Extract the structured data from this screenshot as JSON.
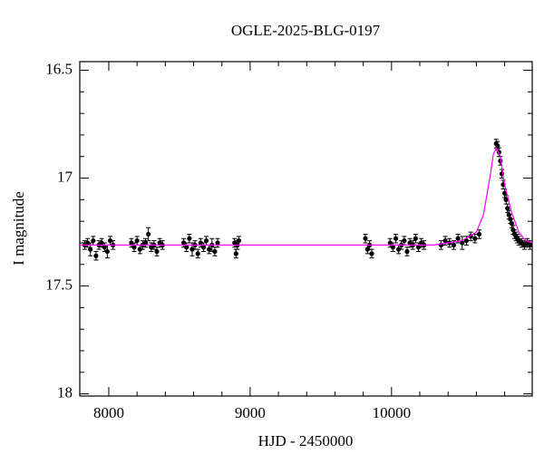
{
  "chart_data": {
    "type": "scatter",
    "title": "OGLE-2025-BLG-0197",
    "x_label": "HJD - 2450000",
    "y_label": "I magnitude",
    "xlim": [
      7795,
      10995
    ],
    "ylim": [
      16.46,
      18.01
    ],
    "y_inverted": true,
    "xticks": [
      8000,
      9000,
      10000
    ],
    "yticks": [
      16.5,
      17,
      17.5,
      18
    ],
    "xminorticks": [
      8200,
      8400,
      8600,
      8800,
      9200,
      9400,
      9600,
      9800,
      10200,
      10400,
      10600,
      10800
    ],
    "yminorticks": [
      16.6,
      16.7,
      16.8,
      16.9,
      17.1,
      17.2,
      17.3,
      17.4,
      17.6,
      17.7,
      17.8,
      17.9
    ],
    "series": [
      {
        "kind": "errorbar",
        "color": "#000000",
        "x": [
          7830,
          7850,
          7870,
          7890,
          7910,
          7930,
          7950,
          7970,
          7990,
          8010,
          8030,
          8160,
          8180,
          8200,
          8220,
          8240,
          8260,
          8280,
          8300,
          8320,
          8340,
          8360,
          8380,
          8530,
          8550,
          8570,
          8590,
          8610,
          8630,
          8650,
          8670,
          8690,
          8710,
          8730,
          8750,
          8770,
          8890,
          8900,
          8910,
          8920,
          9815,
          9830,
          9845,
          9860,
          9990,
          10010,
          10030,
          10050,
          10070,
          10090,
          10110,
          10130,
          10150,
          10170,
          10190,
          10210,
          10230,
          10350,
          10380,
          10410,
          10440,
          10470,
          10500,
          10530,
          10560,
          10590,
          10620,
          10740,
          10750,
          10760,
          10770,
          10780,
          10790,
          10800,
          10810,
          10820,
          10830,
          10840,
          10850,
          10860,
          10870,
          10880,
          10890,
          10900,
          10920,
          10940,
          10960,
          10980
        ],
        "values": [
          17.31,
          17.3,
          17.33,
          17.29,
          17.36,
          17.31,
          17.3,
          17.32,
          17.34,
          17.29,
          17.31,
          17.3,
          17.32,
          17.29,
          17.33,
          17.31,
          17.3,
          17.26,
          17.32,
          17.31,
          17.34,
          17.3,
          17.31,
          17.3,
          17.32,
          17.28,
          17.33,
          17.31,
          17.35,
          17.3,
          17.32,
          17.29,
          17.33,
          17.31,
          17.34,
          17.3,
          17.3,
          17.35,
          17.31,
          17.29,
          17.28,
          17.33,
          17.31,
          17.35,
          17.3,
          17.32,
          17.28,
          17.33,
          17.31,
          17.29,
          17.34,
          17.3,
          17.31,
          17.28,
          17.32,
          17.3,
          17.31,
          17.31,
          17.29,
          17.3,
          17.31,
          17.28,
          17.3,
          17.29,
          17.27,
          17.28,
          17.26,
          16.84,
          16.85,
          16.88,
          16.92,
          16.98,
          17.03,
          17.07,
          17.1,
          17.14,
          17.17,
          17.19,
          17.21,
          17.24,
          17.26,
          17.27,
          17.28,
          17.29,
          17.3,
          17.31,
          17.3,
          17.31
        ],
        "errors": [
          0.02,
          0.02,
          0.03,
          0.02,
          0.02,
          0.02,
          0.02,
          0.02,
          0.03,
          0.02,
          0.02,
          0.02,
          0.02,
          0.02,
          0.02,
          0.02,
          0.02,
          0.03,
          0.02,
          0.02,
          0.02,
          0.02,
          0.02,
          0.02,
          0.02,
          0.02,
          0.03,
          0.02,
          0.02,
          0.02,
          0.02,
          0.02,
          0.02,
          0.03,
          0.02,
          0.02,
          0.02,
          0.02,
          0.02,
          0.02,
          0.02,
          0.02,
          0.02,
          0.02,
          0.02,
          0.02,
          0.02,
          0.02,
          0.02,
          0.02,
          0.02,
          0.02,
          0.02,
          0.02,
          0.02,
          0.02,
          0.02,
          0.02,
          0.02,
          0.02,
          0.02,
          0.02,
          0.03,
          0.02,
          0.02,
          0.02,
          0.02,
          0.02,
          0.02,
          0.02,
          0.02,
          0.02,
          0.02,
          0.02,
          0.02,
          0.02,
          0.02,
          0.02,
          0.02,
          0.02,
          0.02,
          0.02,
          0.02,
          0.02,
          0.02,
          0.02,
          0.02,
          0.02
        ]
      },
      {
        "kind": "line",
        "color": "#ff00ff",
        "x": [
          7795,
          8500,
          9500,
          10300,
          10500,
          10600,
          10650,
          10700,
          10720,
          10740,
          10770,
          10800,
          10850,
          10900,
          10950,
          10995
        ],
        "values": [
          17.31,
          17.31,
          17.31,
          17.31,
          17.29,
          17.25,
          17.17,
          16.98,
          16.89,
          16.86,
          16.9,
          17.03,
          17.16,
          17.25,
          17.29,
          17.3
        ]
      }
    ]
  }
}
